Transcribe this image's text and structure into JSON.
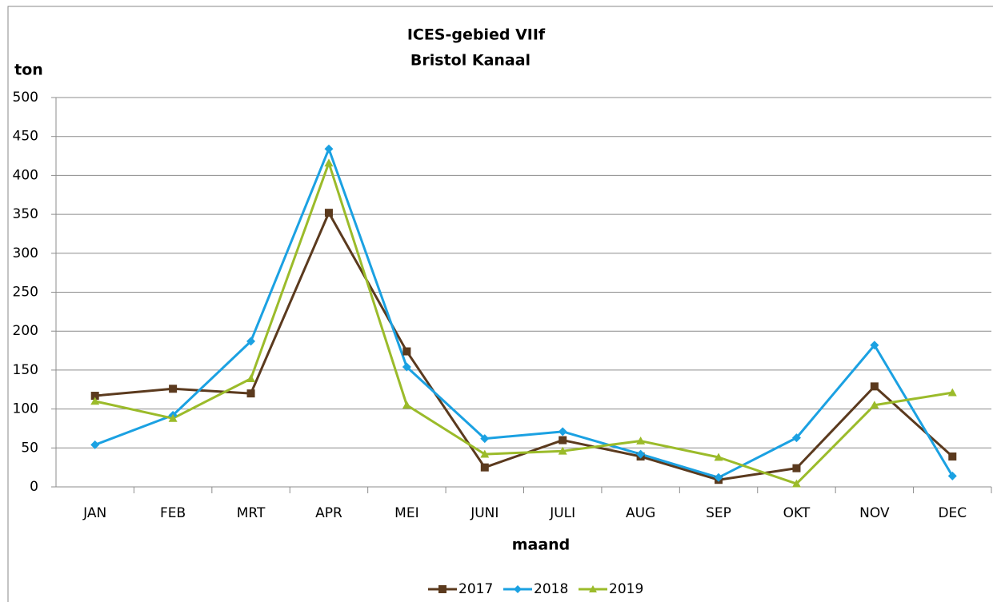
{
  "chart_data": {
    "type": "line",
    "title": "ICES-gebied VIIf",
    "subtitle": "Bristol Kanaal",
    "y_label": "ton",
    "x_label": "maand",
    "categories": [
      "JAN",
      "FEB",
      "MRT",
      "APR",
      "MEI",
      "JUNI",
      "JULI",
      "AUG",
      "SEP",
      "OKT",
      "NOV",
      "DEC"
    ],
    "series": [
      {
        "name": "2017",
        "color": "#5b3a1e",
        "marker": "square",
        "values": [
          117,
          126,
          120,
          352,
          174,
          25,
          60,
          39,
          9,
          24,
          129,
          39
        ]
      },
      {
        "name": "2018",
        "color": "#1ba1e2",
        "marker": "diamond",
        "values": [
          54,
          92,
          187,
          434,
          154,
          62,
          71,
          42,
          12,
          63,
          182,
          14
        ]
      },
      {
        "name": "2019",
        "color": "#9bbb2a",
        "marker": "triangle",
        "values": [
          110,
          88,
          139,
          416,
          105,
          42,
          46,
          59,
          38,
          4,
          105,
          121
        ]
      }
    ],
    "ylim": [
      0,
      500
    ],
    "yticks": [
      0,
      50,
      100,
      150,
      200,
      250,
      300,
      350,
      400,
      450,
      500
    ],
    "grid": true,
    "legend": "bottom"
  }
}
